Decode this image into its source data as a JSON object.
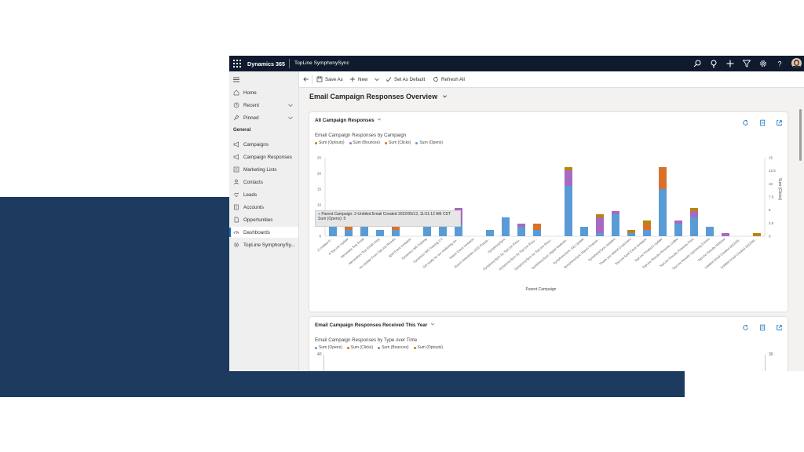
{
  "topbar": {
    "brand": "Dynamics 365",
    "app_name": "TopLine SymphonySync"
  },
  "sidebar": {
    "items_top": [
      {
        "label": "Home",
        "icon": "home-icon"
      },
      {
        "label": "Recent",
        "icon": "clock-icon"
      },
      {
        "label": "Pinned",
        "icon": "pin-icon"
      }
    ],
    "section_label": "General",
    "items": [
      {
        "label": "Campaigns",
        "icon": "megaphone-icon"
      },
      {
        "label": "Campaign Responses",
        "icon": "megaphone-icon"
      },
      {
        "label": "Marketing Lists",
        "icon": "list-icon"
      },
      {
        "label": "Contacts",
        "icon": "person-icon"
      },
      {
        "label": "Leads",
        "icon": "handshake-icon"
      },
      {
        "label": "Accounts",
        "icon": "building-icon"
      },
      {
        "label": "Opportunities",
        "icon": "document-icon"
      },
      {
        "label": "Dashboards",
        "icon": "dashboard-icon"
      },
      {
        "label": "TopLine SymphonySy...",
        "icon": "gear-icon"
      }
    ]
  },
  "toolbar": {
    "save_as": "Save As",
    "new": "New",
    "set_default": "Set As Default",
    "refresh_all": "Refresh All"
  },
  "page": {
    "title": "Email Campaign Responses Overview"
  },
  "card1": {
    "header": "All Campaign Responses",
    "chart_title": "Email Campaign Responses by Campaign",
    "legend": [
      "Sum (Optouts)",
      "Sum (Bounces)",
      "Sum (Clicks)",
      "Sum (Opens)"
    ],
    "x_axis_label": "Parent Campaign",
    "y2_axis_label": "Sum (Clicks)",
    "tooltip_line1": "Parent Campaign: 2-Untitled Email Created 2022/05/13, 11:01:12 AM CDT",
    "tooltip_line2": "Sum (Opens): 5"
  },
  "card2": {
    "header": "Email Campaign Responses Received This Year",
    "chart_title": "Email Campaign Responses by Type over Time",
    "legend": [
      "Sum (Opens)",
      "Sum (Clicks)",
      "Sum (Bounces)",
      "Sum (Optouts)"
    ],
    "y_top": "40",
    "y2_top": "30"
  },
  "colors": {
    "opens": "#5b9bd5",
    "clicks": "#d9712b",
    "bounces": "#a86ac0",
    "optouts": "#b8860b",
    "nav": "#0f1a2e",
    "band": "#1c3b5e"
  },
  "chart_data": {
    "type": "bar",
    "stacked": true,
    "categories": [
      "2-Untitled E...",
      "A TopLine Update",
      "Alexandra Test Email",
      "Alexandra's Test Email Copy",
      "An Update From TopLine Results",
      "April Event Invitation",
      "Dynamics 365 Training",
      "Dynamics 365 Training 2.0",
      "Get ready for our marketing an...",
      "March Event Invitation",
      "March Newsletter 2022 Prepar...",
      "SymphonySync",
      "SymphonySync by TopLine Resu...",
      "SymphonySync by TopLine Resu...",
      "SymphonySync by TopLine Resu...",
      "SymphonySync Digital Marketin...",
      "SymphonySync July Update",
      "SymphonySync March Feature...",
      "SymphonySync Updates",
      "Thank you attend Customers",
      "TopLine April Event Invitation",
      "TopLine Products Update",
      "TopLine Results Presents Coffee",
      "TopLine Results Presents Price",
      "TopLine Results Upcoming Events",
      "TopLine Results Webinar",
      "Untitled Email Created 2022/05...",
      "Untitled Email Created 2022/06..."
    ],
    "series": [
      {
        "name": "Sum (Opens)",
        "values": [
          5,
          2,
          5,
          2,
          2,
          0,
          4,
          5,
          4,
          0,
          2,
          6,
          3,
          2,
          0,
          16,
          3,
          1,
          7,
          1,
          2,
          15,
          4,
          6,
          3,
          0,
          0,
          0
        ]
      },
      {
        "name": "Sum (Clicks)",
        "values": [
          0,
          2,
          0,
          0,
          2,
          0,
          1,
          2,
          0,
          0,
          0,
          0,
          0,
          2,
          0,
          0,
          0,
          0,
          0,
          0,
          2,
          7,
          0,
          0,
          0,
          0,
          0,
          0
        ]
      },
      {
        "name": "Sum (Bounces)",
        "values": [
          0,
          0,
          0,
          0,
          0,
          0,
          0,
          0,
          5,
          0,
          0,
          0,
          1,
          0,
          0,
          5,
          0,
          5,
          1,
          0,
          0,
          0,
          1,
          2,
          0,
          1,
          0,
          0
        ]
      },
      {
        "name": "Sum (Optouts)",
        "values": [
          0,
          0,
          1,
          0,
          0,
          0,
          1,
          0,
          0,
          0,
          0,
          0,
          0,
          0,
          0,
          1,
          0,
          1,
          0,
          1,
          1,
          0,
          0,
          1,
          0,
          0,
          0,
          1
        ]
      }
    ],
    "ylim": [
      0,
      25
    ],
    "yticks": [
      0,
      5,
      10,
      15,
      20,
      25
    ],
    "y2lim": [
      0,
      15
    ],
    "y2ticks": [
      0,
      2.5,
      5,
      7.5,
      10,
      12.5,
      15
    ],
    "ytick_labels": [
      "0",
      "5",
      "10",
      "15",
      "20",
      "25"
    ],
    "y2tick_labels": [
      "0",
      "2.5",
      "5",
      "7.5",
      "10",
      "12.5",
      "15"
    ],
    "xlabel": "Parent Campaign",
    "y2label": "Sum (Clicks)",
    "grid": false,
    "legend_position": "top-left"
  }
}
